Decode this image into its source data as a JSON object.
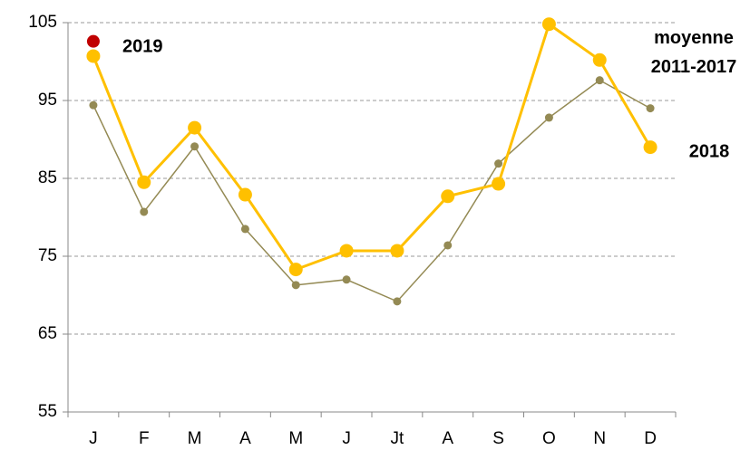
{
  "chart_data": {
    "type": "line",
    "categories": [
      "J",
      "F",
      "M",
      "A",
      "M",
      "J",
      "Jt",
      "A",
      "S",
      "O",
      "N",
      "D"
    ],
    "series": [
      {
        "name": "moyenne 2011-2017",
        "color": "#948a54",
        "values": [
          94.4,
          80.7,
          89.1,
          78.5,
          71.3,
          72.0,
          69.2,
          76.4,
          86.9,
          92.8,
          97.6,
          94.0
        ]
      },
      {
        "name": "2018",
        "color": "#ffc000",
        "values": [
          100.7,
          84.5,
          91.5,
          82.9,
          73.3,
          75.7,
          75.7,
          82.7,
          84.3,
          104.8,
          100.2,
          89.0
        ]
      },
      {
        "name": "2019",
        "color": "#c00000",
        "values": [
          102.6,
          null,
          null,
          null,
          null,
          null,
          null,
          null,
          null,
          null,
          null,
          null
        ]
      }
    ],
    "ylim": [
      55,
      105
    ],
    "yticks": [
      55,
      65,
      75,
      85,
      95,
      105
    ],
    "grid": true
  }
}
